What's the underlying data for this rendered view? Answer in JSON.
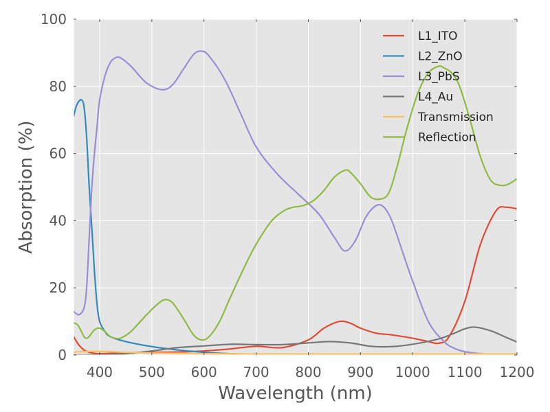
{
  "chart_data": {
    "type": "line",
    "title": "",
    "xlabel": "Wavelength (nm)",
    "ylabel": "Absorption (%)",
    "xlim": [
      350,
      1200
    ],
    "ylim": [
      0,
      100
    ],
    "xticks": [
      400,
      500,
      600,
      700,
      800,
      900,
      1000,
      1100,
      1200
    ],
    "yticks": [
      0,
      20,
      40,
      60,
      80,
      100
    ],
    "grid": true,
    "background": "#e5e5e5",
    "legend_position": "top-right",
    "series": [
      {
        "name": "L1_ITO",
        "color": "#e24a33",
        "x": [
          350,
          360,
          370,
          380,
          390,
          400,
          420,
          450,
          500,
          550,
          600,
          650,
          700,
          750,
          800,
          830,
          860,
          880,
          900,
          930,
          960,
          1000,
          1030,
          1050,
          1070,
          1100,
          1130,
          1160,
          1180,
          1200
        ],
        "y": [
          5.5,
          3,
          1.5,
          0.8,
          0.5,
          0.4,
          0.5,
          0.7,
          0.8,
          0.9,
          1.2,
          1.8,
          2.6,
          2.2,
          4.5,
          8,
          10,
          9.5,
          8,
          6.5,
          6,
          5,
          4,
          3.5,
          5.5,
          16,
          33,
          43,
          44,
          43.5
        ]
      },
      {
        "name": "L2_ZnO",
        "color": "#348abd",
        "x": [
          350,
          355,
          360,
          365,
          370,
          375,
          380,
          385,
          390,
          395,
          400,
          410,
          420,
          450,
          500,
          550,
          600,
          650,
          700,
          800,
          900,
          1000,
          1100,
          1200
        ],
        "y": [
          71,
          74,
          75.5,
          76,
          74,
          65,
          50,
          38,
          25,
          15,
          10,
          7,
          5.5,
          4,
          2.5,
          1.5,
          0.8,
          0.4,
          0.2,
          0.1,
          0.05,
          0.02,
          0.01,
          0.01
        ]
      },
      {
        "name": "L3_PbS",
        "color": "#988ed5",
        "x": [
          350,
          360,
          370,
          375,
          380,
          385,
          390,
          395,
          400,
          410,
          420,
          430,
          440,
          460,
          490,
          520,
          540,
          560,
          580,
          595,
          610,
          640,
          670,
          700,
          740,
          780,
          820,
          850,
          870,
          890,
          910,
          930,
          945,
          960,
          980,
          1000,
          1030,
          1060,
          1080,
          1100,
          1130,
          1160,
          1200
        ],
        "y": [
          13,
          12,
          14,
          20,
          35,
          50,
          60,
          68,
          76,
          83,
          87,
          88.5,
          88.5,
          86,
          81,
          79,
          80.5,
          85,
          89.5,
          90.5,
          89,
          82,
          72,
          62,
          54,
          48,
          42,
          35,
          31,
          34,
          41,
          44.5,
          44,
          40,
          31,
          22,
          10,
          4,
          2,
          1,
          0.4,
          0.2,
          0.1
        ]
      },
      {
        "name": "L4_Au",
        "color": "#777777",
        "x": [
          350,
          400,
          450,
          500,
          550,
          600,
          650,
          700,
          750,
          800,
          840,
          880,
          920,
          960,
          1000,
          1050,
          1080,
          1100,
          1120,
          1150,
          1180,
          1200
        ],
        "y": [
          0,
          0.1,
          0.4,
          1.2,
          2.2,
          2.7,
          3.2,
          3.1,
          3.1,
          3.6,
          4,
          3.6,
          2.6,
          2.5,
          3.2,
          4.8,
          6.5,
          7.8,
          8.3,
          7.2,
          5.2,
          3.9
        ]
      },
      {
        "name": "Transmission",
        "color": "#fbc15e",
        "x": [
          350,
          400,
          450,
          500,
          600,
          700,
          800,
          900,
          1000,
          1100,
          1200
        ],
        "y": [
          0.9,
          1.1,
          0.8,
          0.6,
          0.4,
          0.3,
          0.3,
          0.3,
          0.3,
          0.3,
          0.3
        ]
      },
      {
        "name": "Reflection",
        "color": "#8eba42",
        "x": [
          350,
          355,
          360,
          370,
          375,
          380,
          390,
          400,
          410,
          420,
          430,
          440,
          460,
          490,
          510,
          525,
          540,
          560,
          580,
          595,
          610,
          630,
          650,
          680,
          700,
          730,
          760,
          790,
          810,
          830,
          850,
          870,
          880,
          900,
          920,
          940,
          955,
          970,
          990,
          1010,
          1030,
          1050,
          1060,
          1075,
          1090,
          1110,
          1130,
          1150,
          1170,
          1185,
          1200
        ],
        "y": [
          9.5,
          9.3,
          8.5,
          5.5,
          5,
          5.5,
          7.5,
          8,
          7,
          5.5,
          5,
          5,
          7,
          12,
          15,
          16.5,
          15.5,
          11,
          6,
          4.5,
          5.5,
          10,
          17,
          27,
          33,
          40,
          43.5,
          44.5,
          46,
          49,
          53,
          55,
          54.5,
          51,
          47,
          46.5,
          48.5,
          56,
          68,
          78,
          84,
          86,
          85.5,
          84,
          80,
          70,
          59,
          52,
          50.5,
          51,
          52.5
        ]
      }
    ]
  }
}
